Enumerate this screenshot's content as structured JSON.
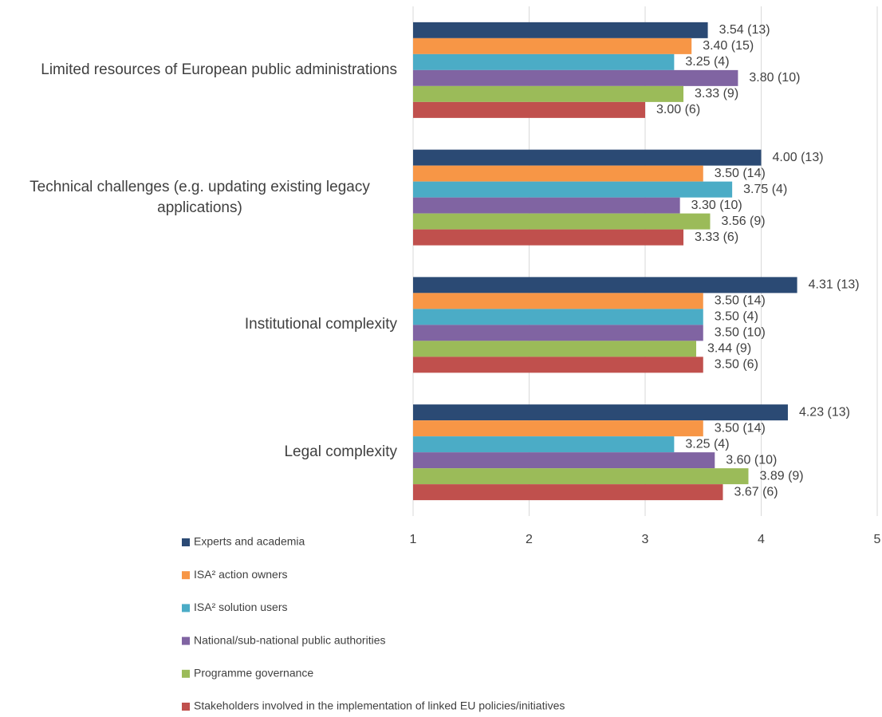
{
  "chart_data": {
    "type": "hbar",
    "categories": [
      "Limited resources of European public administrations",
      "Technical challenges (e.g. updating existing legacy applications)",
      "Institutional complexity",
      "Legal complexity"
    ],
    "series": [
      {
        "name": "Experts and academia",
        "color": "#2b4a74",
        "values": [
          3.54,
          4.0,
          4.31,
          4.23
        ],
        "value_labels": [
          "3.54 (13)",
          "4.00 (13)",
          "4.31 (13)",
          "4.23 (13)"
        ]
      },
      {
        "name": "ISA² action owners",
        "color": "#f79646",
        "values": [
          3.4,
          3.5,
          3.5,
          3.5
        ],
        "value_labels": [
          "3.40 (15)",
          "3.50 (14)",
          "3.50 (14)",
          "3.50 (14)"
        ]
      },
      {
        "name": "ISA² solution users",
        "color": "#4bacc6",
        "values": [
          3.25,
          3.75,
          3.5,
          3.25
        ],
        "value_labels": [
          "3.25 (4)",
          "3.75 (4)",
          "3.50 (4)",
          "3.25 (4)"
        ]
      },
      {
        "name": "National/sub-national public authorities",
        "color": "#8064a2",
        "values": [
          3.8,
          3.3,
          3.5,
          3.6
        ],
        "value_labels": [
          "3.80 (10)",
          "3.30 (10)",
          "3.50 (10)",
          "3.60 (10)"
        ]
      },
      {
        "name": "Programme governance",
        "color": "#9bbb59",
        "values": [
          3.33,
          3.56,
          3.44,
          3.89
        ],
        "value_labels": [
          "3.33 (9)",
          "3.56 (9)",
          "3.44 (9)",
          "3.89 (9)"
        ]
      },
      {
        "name": "Stakeholders involved in the implementation of linked EU policies/initiatives",
        "color": "#c0504d",
        "values": [
          3.0,
          3.33,
          3.5,
          3.67
        ],
        "value_labels": [
          "3.00 (6)",
          "3.33 (6)",
          "3.50 (6)",
          "3.67 (6)"
        ]
      }
    ],
    "xlim": [
      1,
      5
    ],
    "xticks": [
      1,
      2,
      3,
      4,
      5
    ],
    "grid": true,
    "legend": "bottom"
  }
}
